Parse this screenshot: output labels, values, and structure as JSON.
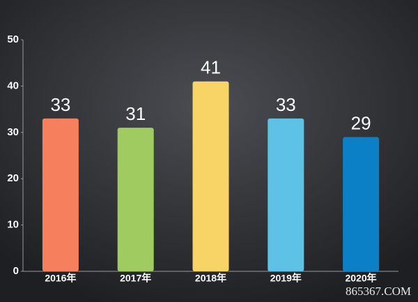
{
  "chart_data": {
    "type": "bar",
    "categories": [
      "2016年",
      "2017年",
      "2018年",
      "2019年",
      "2020年"
    ],
    "values": [
      33,
      31,
      41,
      33,
      29
    ],
    "colors": [
      "#f6805e",
      "#9fcb60",
      "#f8d466",
      "#5ec1e6",
      "#0b80c6"
    ],
    "ylim": [
      0,
      50
    ],
    "yticks": [
      0,
      10,
      20,
      30,
      40,
      50
    ],
    "grid": false
  },
  "watermark": "865367.COM"
}
